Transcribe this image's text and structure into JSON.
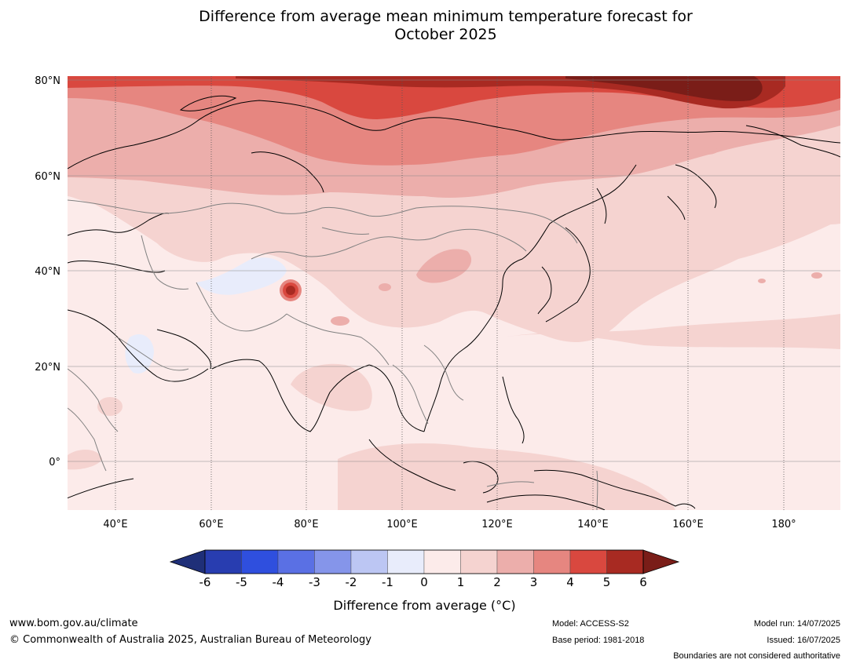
{
  "title": {
    "line1": "Difference from average mean minimum temperature forecast for",
    "line2": "October 2025"
  },
  "map": {
    "lat_labels": [
      "80°N",
      "60°N",
      "40°N",
      "20°N",
      "0°"
    ],
    "lon_labels": [
      "40°E",
      "60°E",
      "80°E",
      "100°E",
      "120°E",
      "140°E",
      "160°E",
      "180°"
    ],
    "extent": {
      "lon": [
        30,
        191
      ],
      "lat": [
        -10,
        81
      ]
    }
  },
  "colorbar": {
    "ticks": [
      "-6",
      "-5",
      "-4",
      "-3",
      "-2",
      "-1",
      "0",
      "1",
      "2",
      "3",
      "4",
      "5",
      "6"
    ],
    "colors": [
      "#1f2f78",
      "#283db0",
      "#2f4fde",
      "#5a70e4",
      "#8595ea",
      "#bcc6f3",
      "#e8ecfb",
      "#fcebea",
      "#f5d3d0",
      "#ecaeab",
      "#e68680",
      "#d9483f",
      "#a82a22",
      "#7a1d18"
    ],
    "title": "Difference from average (°C)"
  },
  "footer": {
    "website": "www.bom.gov.au/climate",
    "copyright": "© Commonwealth of Australia 2025, Australian Bureau of Meteorology",
    "model": "Model: ACCESS-S2",
    "base_period": "Base period: 1981-2018",
    "model_run": "Model run: 14/07/2025",
    "issued": "Issued: 16/07/2025",
    "disclaimer": "Boundaries are not considered authoritative"
  }
}
